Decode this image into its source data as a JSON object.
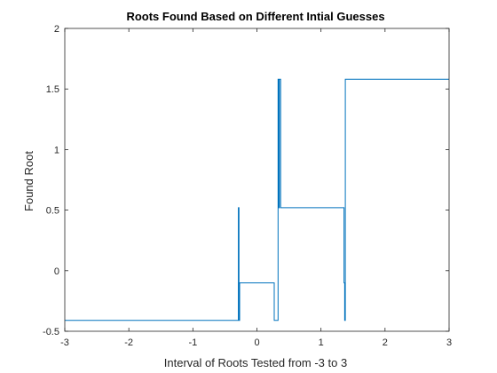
{
  "chart_data": {
    "type": "line",
    "title": "Roots Found Based on Different Intial Guesses",
    "xlabel": "Interval of Roots Tested from -3 to 3",
    "ylabel": "Found Root",
    "xlim": [
      -3,
      3
    ],
    "ylim": [
      -0.5,
      2
    ],
    "xticks": [
      -3,
      -2,
      -1,
      0,
      1,
      2,
      3
    ],
    "yticks": [
      -0.5,
      0,
      0.5,
      1,
      1.5,
      2
    ],
    "xtick_labels": [
      "-3",
      "-2",
      "-1",
      "0",
      "1",
      "2",
      "3"
    ],
    "ytick_labels": [
      "-0.5",
      "0",
      "0.5",
      "1",
      "1.5",
      "2"
    ],
    "grid": false,
    "box": true,
    "series_color": "#0072BD",
    "series": [
      {
        "x": [
          -3.0,
          -0.29,
          -0.29,
          -0.28,
          -0.28,
          -0.27,
          -0.27,
          -0.26,
          -0.26,
          0.26,
          0.27,
          0.27,
          0.33,
          0.33,
          0.34,
          0.34,
          0.35,
          0.35,
          0.36,
          0.37,
          0.37,
          0.38,
          0.38,
          1.36,
          1.36,
          1.37,
          1.37,
          1.38,
          1.38,
          1.39,
          1.39,
          3.0
        ],
        "y": [
          -0.41,
          -0.41,
          0.52,
          0.52,
          -0.41,
          -0.41,
          -0.1,
          -0.1,
          -0.1,
          -0.1,
          -0.1,
          -0.41,
          -0.41,
          1.58,
          1.58,
          0.52,
          0.52,
          1.58,
          1.58,
          1.58,
          0.52,
          0.52,
          0.52,
          0.52,
          -0.1,
          -0.1,
          -0.41,
          -0.41,
          1.58,
          1.58,
          1.58,
          1.58
        ]
      }
    ],
    "colors": {
      "axes": "#262626",
      "background": "#ffffff"
    }
  }
}
